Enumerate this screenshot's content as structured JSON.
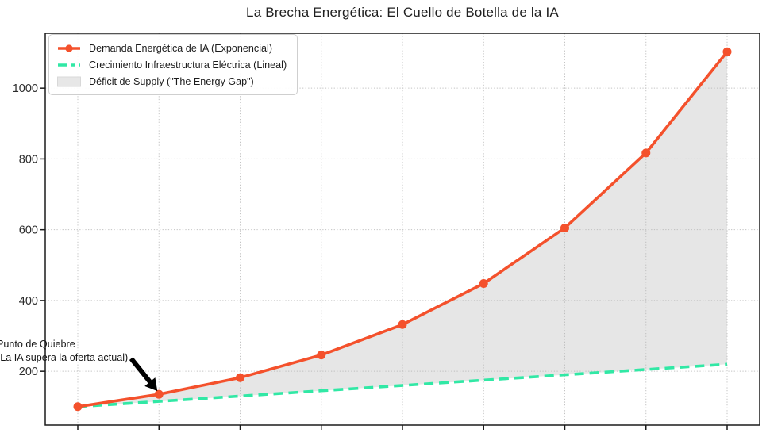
{
  "title": "La Brecha Energética: El Cuello de Botella de la IA",
  "chart_data": {
    "type": "line",
    "x_tick_count": 9,
    "x_tick_labels_visible": false,
    "xlabel": "",
    "ylabel": "",
    "y_ticks": [
      200,
      400,
      600,
      800,
      1000
    ],
    "ylim": [
      48,
      1155
    ],
    "grid": true,
    "legend_position": "upper-left",
    "series": [
      {
        "name": "Demanda Energética de IA (Exponencial)",
        "values": [
          100,
          135,
          182,
          246,
          332,
          448,
          605,
          817,
          1103
        ],
        "color": "#F4512C",
        "style": "solid",
        "marker": "circle"
      },
      {
        "name": "Crecimiento Infraestructura Eléctrica (Lineal)",
        "values": [
          100,
          115,
          130,
          145,
          160,
          175,
          190,
          205,
          220
        ],
        "color": "#31E8A5",
        "style": "dashed",
        "marker": "none"
      }
    ],
    "fill_between": {
      "label": "Déficit de Supply (\"The Energy Gap\")",
      "color": "#B4B4B4",
      "opacity": 0.33
    },
    "annotation": {
      "line1": "Punto de Quiebre",
      "line2": "(La IA supera la oferta actual)",
      "target_series": 0,
      "target_index": 1,
      "arrow_color": "#000000"
    }
  },
  "colors": {
    "grid": "#C3C3C3",
    "spine": "#1B1B1B",
    "tick_label": "#2B2B2B",
    "legend_border": "#CFCFCF",
    "legend_swatch_gap_fill": "#E7E7E7",
    "legend_swatch_gap_border": "#D8D8D8"
  }
}
